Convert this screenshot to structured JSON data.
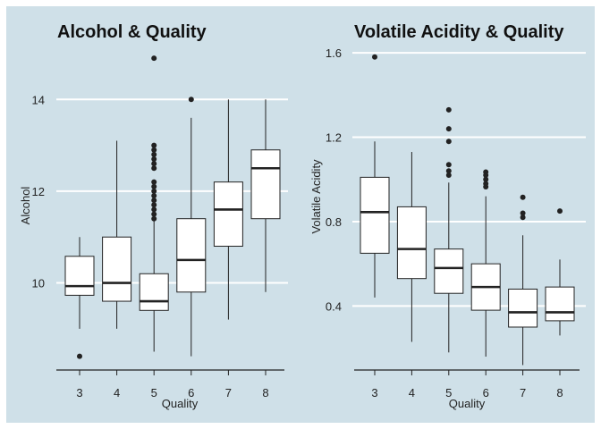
{
  "colors": {
    "background": "#cfe0e8",
    "grid": "#ffffff",
    "box_fill": "#ffffff",
    "box_stroke": "#222222",
    "outlier": "#222222"
  },
  "chart_data": [
    {
      "type": "boxplot",
      "title": "Alcohol & Quality",
      "xlabel": "Quality",
      "ylabel": "Alcohol",
      "ylim": [
        8.1,
        15.0
      ],
      "yticks": [
        10,
        12,
        14
      ],
      "categories": [
        "3",
        "4",
        "5",
        "6",
        "7",
        "8"
      ],
      "boxes": [
        {
          "category": "3",
          "whisker_low": 9.0,
          "q1": 9.73,
          "median": 9.93,
          "q3": 10.58,
          "whisker_high": 11.0,
          "outliers": [
            8.4
          ]
        },
        {
          "category": "4",
          "whisker_low": 9.0,
          "q1": 9.6,
          "median": 10.0,
          "q3": 11.0,
          "whisker_high": 13.1,
          "outliers": []
        },
        {
          "category": "5",
          "whisker_low": 8.5,
          "q1": 9.4,
          "median": 9.6,
          "q3": 10.2,
          "whisker_high": 11.4,
          "outliers": [
            11.4,
            11.5,
            11.6,
            11.7,
            11.8,
            11.9,
            12.0,
            12.1,
            12.2,
            12.5,
            12.6,
            12.7,
            12.8,
            12.9,
            13.0,
            14.9
          ]
        },
        {
          "category": "6",
          "whisker_low": 8.4,
          "q1": 9.8,
          "median": 10.5,
          "q3": 11.4,
          "whisker_high": 13.6,
          "outliers": [
            14.0
          ]
        },
        {
          "category": "7",
          "whisker_low": 9.2,
          "q1": 10.8,
          "median": 11.6,
          "q3": 12.2,
          "whisker_high": 14.0,
          "outliers": []
        },
        {
          "category": "8",
          "whisker_low": 9.8,
          "q1": 11.4,
          "median": 12.5,
          "q3": 12.9,
          "whisker_high": 14.0,
          "outliers": []
        }
      ]
    },
    {
      "type": "boxplot",
      "title": "Volatile Acidity & Quality",
      "xlabel": "Quality",
      "ylabel": "Volatile Acidity",
      "ylim": [
        0.05,
        1.63
      ],
      "yticks": [
        0.4,
        0.8,
        1.2,
        1.6
      ],
      "categories": [
        "3",
        "4",
        "5",
        "6",
        "7",
        "8"
      ],
      "boxes": [
        {
          "category": "3",
          "whisker_low": 0.44,
          "q1": 0.65,
          "median": 0.845,
          "q3": 1.01,
          "whisker_high": 1.18,
          "outliers": [
            1.58
          ]
        },
        {
          "category": "4",
          "whisker_low": 0.23,
          "q1": 0.53,
          "median": 0.67,
          "q3": 0.87,
          "whisker_high": 1.13,
          "outliers": []
        },
        {
          "category": "5",
          "whisker_low": 0.18,
          "q1": 0.46,
          "median": 0.58,
          "q3": 0.67,
          "whisker_high": 0.985,
          "outliers": [
            1.02,
            1.04,
            1.07,
            1.18,
            1.24,
            1.33
          ]
        },
        {
          "category": "6",
          "whisker_low": 0.16,
          "q1": 0.38,
          "median": 0.49,
          "q3": 0.6,
          "whisker_high": 0.92,
          "outliers": [
            0.965,
            0.98,
            1.0,
            1.02,
            1.035
          ]
        },
        {
          "category": "7",
          "whisker_low": 0.12,
          "q1": 0.3,
          "median": 0.37,
          "q3": 0.48,
          "whisker_high": 0.735,
          "outliers": [
            0.82,
            0.84,
            0.915
          ]
        },
        {
          "category": "8",
          "whisker_low": 0.26,
          "q1": 0.33,
          "median": 0.37,
          "q3": 0.49,
          "whisker_high": 0.62,
          "outliers": [
            0.85
          ]
        }
      ]
    }
  ]
}
